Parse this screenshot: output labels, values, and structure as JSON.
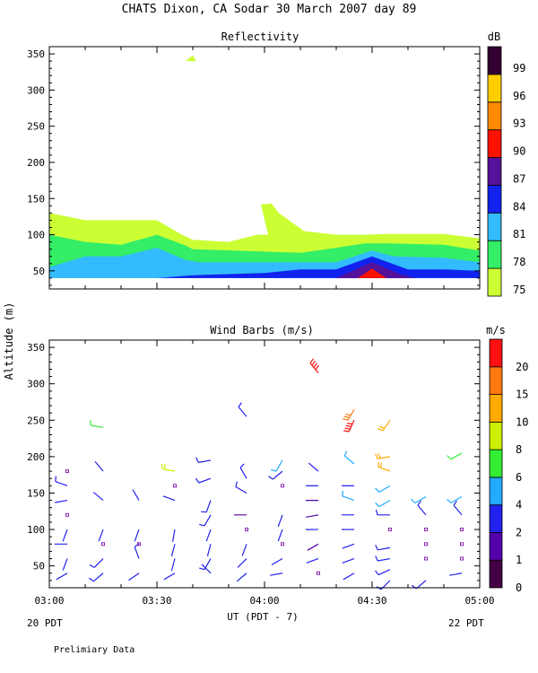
{
  "title": "CHATS Dixon, CA   Sodar   30 March 2007   day  89",
  "footer": {
    "left_date": "20 PDT",
    "right_date": "22 PDT",
    "xlabel": "UT  (PDT - 7)",
    "note": "Prelimiary Data",
    "ylabel": "Altitude (m)"
  },
  "chart_data": [
    {
      "type": "area",
      "title": "Reflectivity",
      "xlabel": "UT  (PDT - 7)",
      "ylabel": "Altitude (m)",
      "xlim": [
        0,
        120
      ],
      "ylim": [
        25,
        360
      ],
      "x_tick_labels": [
        "03:00",
        "03:30",
        "04:00",
        "04:30",
        "05:00"
      ],
      "x_tick_values": [
        0,
        30,
        60,
        90,
        120
      ],
      "y_ticks": [
        50,
        100,
        150,
        200,
        250,
        300,
        350
      ],
      "colorbar": {
        "unit": "dB",
        "labels": [
          "75",
          "78",
          "81",
          "84",
          "87",
          "90",
          "93",
          "96",
          "99"
        ],
        "colors": [
          "#ccff33",
          "#33ee66",
          "#33bbff",
          "#1122ee",
          "#551199",
          "#ff1100",
          "#ff8800",
          "#ffcc00",
          "#330033"
        ]
      },
      "contours": [
        {
          "level": "75",
          "color": "#ccff33",
          "points": [
            [
              0,
              40
            ],
            [
              0,
              130
            ],
            [
              10,
              120
            ],
            [
              30,
              120
            ],
            [
              37,
              100
            ],
            [
              40,
              93
            ],
            [
              50,
              90
            ],
            [
              58,
              100
            ],
            [
              61,
              100
            ],
            [
              59,
              142
            ],
            [
              62,
              143
            ],
            [
              64,
              130
            ],
            [
              71,
              105
            ],
            [
              80,
              100
            ],
            [
              88,
              100
            ],
            [
              94,
              101
            ],
            [
              110,
              101
            ],
            [
              120,
              95
            ],
            [
              120,
              40
            ]
          ]
        },
        {
          "level": "75",
          "color": "#ccff33",
          "points": [
            [
              38,
              340
            ],
            [
              40,
              348
            ],
            [
              41,
              340
            ]
          ]
        },
        {
          "level": "78",
          "color": "#33ee66",
          "points": [
            [
              0,
              40
            ],
            [
              0,
              100
            ],
            [
              10,
              90
            ],
            [
              20,
              86
            ],
            [
              30,
              100
            ],
            [
              38,
              85
            ],
            [
              40,
              80
            ],
            [
              70,
              75
            ],
            [
              80,
              82
            ],
            [
              88,
              88
            ],
            [
              95,
              88
            ],
            [
              110,
              86
            ],
            [
              120,
              78
            ],
            [
              120,
              40
            ]
          ]
        },
        {
          "level": "81",
          "color": "#33bbff",
          "points": [
            [
              0,
              40
            ],
            [
              0,
              55
            ],
            [
              10,
              70
            ],
            [
              20,
              70
            ],
            [
              30,
              82
            ],
            [
              38,
              65
            ],
            [
              42,
              62
            ],
            [
              80,
              62
            ],
            [
              85,
              70
            ],
            [
              90,
              78
            ],
            [
              96,
              70
            ],
            [
              110,
              68
            ],
            [
              120,
              62
            ],
            [
              120,
              40
            ]
          ]
        },
        {
          "level": "84",
          "color": "#1122ee",
          "points": [
            [
              30,
              40
            ],
            [
              40,
              44
            ],
            [
              60,
              47
            ],
            [
              70,
              52
            ],
            [
              80,
              52
            ],
            [
              90,
              70
            ],
            [
              100,
              52
            ],
            [
              110,
              52
            ],
            [
              120,
              50
            ],
            [
              120,
              40
            ]
          ]
        },
        {
          "level": "87",
          "color": "#551199",
          "points": [
            [
              80,
              40
            ],
            [
              90,
              62
            ],
            [
              98,
              45
            ],
            [
              102,
              40
            ]
          ]
        },
        {
          "level": "90",
          "color": "#ff1100",
          "points": [
            [
              86,
              40
            ],
            [
              90,
              53
            ],
            [
              94,
              40
            ]
          ]
        }
      ]
    },
    {
      "type": "scatter",
      "title": "Wind Barbs (m/s)",
      "xlabel": "UT  (PDT - 7)",
      "ylabel": "Altitude (m)",
      "xlim": [
        0,
        120
      ],
      "ylim": [
        20,
        360
      ],
      "x_tick_labels": [
        "03:00",
        "03:30",
        "04:00",
        "04:30",
        "05:00"
      ],
      "x_tick_values": [
        0,
        30,
        60,
        90,
        120
      ],
      "y_ticks": [
        50,
        100,
        150,
        200,
        250,
        300,
        350
      ],
      "colorbar": {
        "unit": "m/s",
        "labels": [
          "0",
          "1",
          "2",
          "4",
          "6",
          "8",
          "10",
          "15",
          "20"
        ],
        "colors": [
          "#440044",
          "#5500aa",
          "#2222ee",
          "#22aaff",
          "#33ee33",
          "#ccee00",
          "#ffaa00",
          "#ff7711",
          "#ff1111"
        ]
      },
      "barbs": [
        {
          "x": 5,
          "y": 40,
          "dir": 240,
          "speed": 2
        },
        {
          "x": 5,
          "y": 60,
          "dir": 200,
          "speed": 2
        },
        {
          "x": 5,
          "y": 80,
          "dir": 270,
          "speed": 2
        },
        {
          "x": 5,
          "y": 100,
          "dir": 200,
          "speed": 2
        },
        {
          "x": 5,
          "y": 120,
          "dir": 0,
          "speed": 0
        },
        {
          "x": 5,
          "y": 140,
          "dir": 260,
          "speed": 2
        },
        {
          "x": 5,
          "y": 160,
          "dir": 290,
          "speed": 3
        },
        {
          "x": 5,
          "y": 180,
          "dir": 0,
          "speed": 0
        },
        {
          "x": 15,
          "y": 40,
          "dir": 230,
          "speed": 3
        },
        {
          "x": 15,
          "y": 60,
          "dir": 225,
          "speed": 3
        },
        {
          "x": 15,
          "y": 80,
          "dir": 0,
          "speed": 0
        },
        {
          "x": 15,
          "y": 100,
          "dir": 200,
          "speed": 2
        },
        {
          "x": 15,
          "y": 140,
          "dir": 310,
          "speed": 2
        },
        {
          "x": 15,
          "y": 180,
          "dir": 320,
          "speed": 2
        },
        {
          "x": 15,
          "y": 240,
          "dir": 280,
          "speed": 6
        },
        {
          "x": 25,
          "y": 40,
          "dir": 235,
          "speed": 2
        },
        {
          "x": 25,
          "y": 60,
          "dir": 340,
          "speed": 3
        },
        {
          "x": 25,
          "y": 80,
          "dir": 0,
          "speed": 0
        },
        {
          "x": 25,
          "y": 100,
          "dir": 200,
          "speed": 2
        },
        {
          "x": 25,
          "y": 140,
          "dir": 330,
          "speed": 2
        },
        {
          "x": 35,
          "y": 40,
          "dir": 240,
          "speed": 2
        },
        {
          "x": 35,
          "y": 60,
          "dir": 195,
          "speed": 2
        },
        {
          "x": 35,
          "y": 80,
          "dir": 195,
          "speed": 2
        },
        {
          "x": 35,
          "y": 100,
          "dir": 190,
          "speed": 2
        },
        {
          "x": 35,
          "y": 140,
          "dir": 290,
          "speed": 2
        },
        {
          "x": 35,
          "y": 160,
          "dir": 0,
          "speed": 0
        },
        {
          "x": 35,
          "y": 180,
          "dir": 280,
          "speed": 8
        },
        {
          "x": 45,
          "y": 40,
          "dir": 315,
          "speed": 2
        },
        {
          "x": 45,
          "y": 60,
          "dir": 210,
          "speed": 3
        },
        {
          "x": 45,
          "y": 80,
          "dir": 195,
          "speed": 2
        },
        {
          "x": 45,
          "y": 100,
          "dir": 200,
          "speed": 2
        },
        {
          "x": 45,
          "y": 120,
          "dir": 210,
          "speed": 3
        },
        {
          "x": 45,
          "y": 140,
          "dir": 200,
          "speed": 3
        },
        {
          "x": 45,
          "y": 170,
          "dir": 250,
          "speed": 3
        },
        {
          "x": 45,
          "y": 195,
          "dir": 260,
          "speed": 3
        },
        {
          "x": 55,
          "y": 40,
          "dir": 230,
          "speed": 2
        },
        {
          "x": 55,
          "y": 60,
          "dir": 225,
          "speed": 2
        },
        {
          "x": 55,
          "y": 80,
          "dir": 200,
          "speed": 2
        },
        {
          "x": 55,
          "y": 100,
          "dir": 0,
          "speed": 0
        },
        {
          "x": 55,
          "y": 120,
          "dir": 270,
          "speed": 1
        },
        {
          "x": 55,
          "y": 150,
          "dir": 300,
          "speed": 3
        },
        {
          "x": 55,
          "y": 170,
          "dir": 330,
          "speed": 3
        },
        {
          "x": 55,
          "y": 255,
          "dir": 320,
          "speed": 3
        },
        {
          "x": 65,
          "y": 40,
          "dir": 260,
          "speed": 2
        },
        {
          "x": 65,
          "y": 60,
          "dir": 240,
          "speed": 2
        },
        {
          "x": 65,
          "y": 80,
          "dir": 0,
          "speed": 0
        },
        {
          "x": 65,
          "y": 100,
          "dir": 200,
          "speed": 2
        },
        {
          "x": 65,
          "y": 120,
          "dir": 200,
          "speed": 2
        },
        {
          "x": 65,
          "y": 160,
          "dir": 0,
          "speed": 0
        },
        {
          "x": 65,
          "y": 180,
          "dir": 230,
          "speed": 3
        },
        {
          "x": 65,
          "y": 195,
          "dir": 210,
          "speed": 4
        },
        {
          "x": 75,
          "y": 40,
          "dir": 0,
          "speed": 0
        },
        {
          "x": 75,
          "y": 60,
          "dir": 250,
          "speed": 2
        },
        {
          "x": 75,
          "y": 80,
          "dir": 240,
          "speed": 1
        },
        {
          "x": 75,
          "y": 100,
          "dir": 270,
          "speed": 2
        },
        {
          "x": 75,
          "y": 120,
          "dir": 260,
          "speed": 1
        },
        {
          "x": 75,
          "y": 140,
          "dir": 270,
          "speed": 1
        },
        {
          "x": 75,
          "y": 160,
          "dir": 270,
          "speed": 2
        },
        {
          "x": 75,
          "y": 180,
          "dir": 310,
          "speed": 2
        },
        {
          "x": 75,
          "y": 315,
          "dir": 320,
          "speed": 20
        },
        {
          "x": 85,
          "y": 40,
          "dir": 240,
          "speed": 2
        },
        {
          "x": 85,
          "y": 60,
          "dir": 250,
          "speed": 2
        },
        {
          "x": 85,
          "y": 80,
          "dir": 250,
          "speed": 2
        },
        {
          "x": 85,
          "y": 100,
          "dir": 270,
          "speed": 2
        },
        {
          "x": 85,
          "y": 120,
          "dir": 270,
          "speed": 2
        },
        {
          "x": 85,
          "y": 140,
          "dir": 290,
          "speed": 5
        },
        {
          "x": 85,
          "y": 160,
          "dir": 270,
          "speed": 2
        },
        {
          "x": 85,
          "y": 190,
          "dir": 310,
          "speed": 5
        },
        {
          "x": 85,
          "y": 250,
          "dir": 205,
          "speed": 20
        },
        {
          "x": 85,
          "y": 265,
          "dir": 210,
          "speed": 15
        },
        {
          "x": 95,
          "y": 30,
          "dir": 225,
          "speed": 3
        },
        {
          "x": 95,
          "y": 45,
          "dir": 245,
          "speed": 3
        },
        {
          "x": 95,
          "y": 60,
          "dir": 260,
          "speed": 3
        },
        {
          "x": 95,
          "y": 75,
          "dir": 260,
          "speed": 3
        },
        {
          "x": 95,
          "y": 100,
          "dir": 0,
          "speed": 0
        },
        {
          "x": 95,
          "y": 120,
          "dir": 270,
          "speed": 3
        },
        {
          "x": 95,
          "y": 140,
          "dir": 240,
          "speed": 5
        },
        {
          "x": 95,
          "y": 160,
          "dir": 240,
          "speed": 4
        },
        {
          "x": 95,
          "y": 180,
          "dir": 290,
          "speed": 12
        },
        {
          "x": 95,
          "y": 200,
          "dir": 260,
          "speed": 12
        },
        {
          "x": 95,
          "y": 250,
          "dir": 215,
          "speed": 12
        },
        {
          "x": 105,
          "y": 30,
          "dir": 230,
          "speed": 3
        },
        {
          "x": 105,
          "y": 60,
          "dir": 0,
          "speed": 0
        },
        {
          "x": 105,
          "y": 80,
          "dir": 0,
          "speed": 0
        },
        {
          "x": 105,
          "y": 100,
          "dir": 0,
          "speed": 0
        },
        {
          "x": 105,
          "y": 120,
          "dir": 320,
          "speed": 3
        },
        {
          "x": 105,
          "y": 145,
          "dir": 240,
          "speed": 5
        },
        {
          "x": 115,
          "y": 40,
          "dir": 260,
          "speed": 2
        },
        {
          "x": 115,
          "y": 60,
          "dir": 0,
          "speed": 0
        },
        {
          "x": 115,
          "y": 80,
          "dir": 0,
          "speed": 0
        },
        {
          "x": 115,
          "y": 100,
          "dir": 0,
          "speed": 0
        },
        {
          "x": 115,
          "y": 120,
          "dir": 320,
          "speed": 3
        },
        {
          "x": 115,
          "y": 145,
          "dir": 240,
          "speed": 5
        },
        {
          "x": 115,
          "y": 205,
          "dir": 240,
          "speed": 6
        }
      ]
    }
  ]
}
